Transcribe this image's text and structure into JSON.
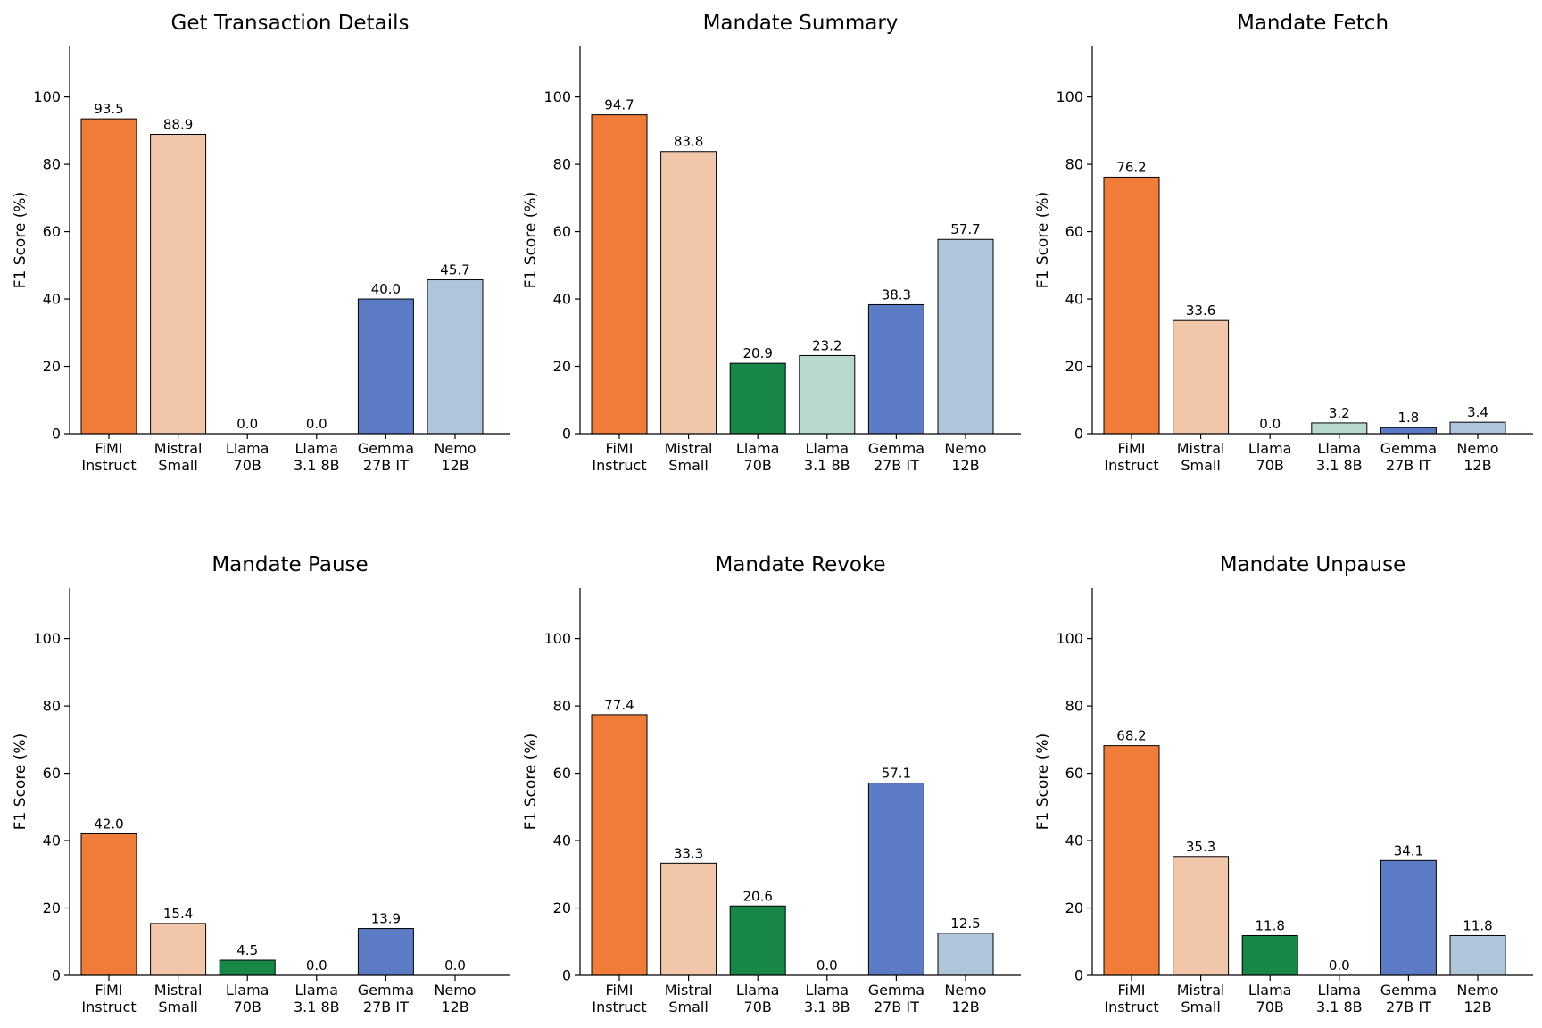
{
  "figure": {
    "categories": [
      [
        "FiMI",
        "Instruct"
      ],
      [
        "Mistral",
        "Small"
      ],
      [
        "Llama",
        "70B"
      ],
      [
        "Llama",
        "3.1 8B"
      ],
      [
        "Gemma",
        "27B IT"
      ],
      [
        "Nemo",
        "12B"
      ]
    ],
    "colors": [
      "#f07c39",
      "#f2c6a9",
      "#178646",
      "#b9d9d0",
      "#5b7bc4",
      "#afc6da"
    ]
  },
  "chart_data": [
    {
      "type": "bar",
      "title": "Get Transaction Details",
      "ylabel": "F1 Score (%)",
      "xlabel": "",
      "ylim": [
        0,
        115
      ],
      "yticks": [
        0,
        20,
        40,
        60,
        80,
        100
      ],
      "categories": [
        "FiMI Instruct",
        "Mistral Small",
        "Llama 70B",
        "Llama 3.1 8B",
        "Gemma 27B IT",
        "Nemo 12B"
      ],
      "values": [
        93.5,
        88.9,
        0.0,
        0.0,
        40.0,
        45.7
      ],
      "labels": [
        "93.5",
        "88.9",
        "0.0",
        "0.0",
        "40.0",
        "45.7"
      ]
    },
    {
      "type": "bar",
      "title": "Mandate Summary",
      "ylabel": "F1 Score (%)",
      "xlabel": "",
      "ylim": [
        0,
        115
      ],
      "yticks": [
        0,
        20,
        40,
        60,
        80,
        100
      ],
      "categories": [
        "FiMI Instruct",
        "Mistral Small",
        "Llama 70B",
        "Llama 3.1 8B",
        "Gemma 27B IT",
        "Nemo 12B"
      ],
      "values": [
        94.7,
        83.8,
        20.9,
        23.2,
        38.3,
        57.7
      ],
      "labels": [
        "94.7",
        "83.8",
        "20.9",
        "23.2",
        "38.3",
        "57.7"
      ]
    },
    {
      "type": "bar",
      "title": "Mandate Fetch",
      "ylabel": "F1 Score (%)",
      "xlabel": "",
      "ylim": [
        0,
        115
      ],
      "yticks": [
        0,
        20,
        40,
        60,
        80,
        100
      ],
      "categories": [
        "FiMI Instruct",
        "Mistral Small",
        "Llama 70B",
        "Llama 3.1 8B",
        "Gemma 27B IT",
        "Nemo 12B"
      ],
      "values": [
        76.2,
        33.6,
        0.0,
        3.2,
        1.8,
        3.4
      ],
      "labels": [
        "76.2",
        "33.6",
        "0.0",
        "3.2",
        "1.8",
        "3.4"
      ]
    },
    {
      "type": "bar",
      "title": "Mandate Pause",
      "ylabel": "F1 Score (%)",
      "xlabel": "",
      "ylim": [
        0,
        115
      ],
      "yticks": [
        0,
        20,
        40,
        60,
        80,
        100
      ],
      "categories": [
        "FiMI Instruct",
        "Mistral Small",
        "Llama 70B",
        "Llama 3.1 8B",
        "Gemma 27B IT",
        "Nemo 12B"
      ],
      "values": [
        42.0,
        15.4,
        4.5,
        0.0,
        13.9,
        0.0
      ],
      "labels": [
        "42.0",
        "15.4",
        "4.5",
        "0.0",
        "13.9",
        "0.0"
      ]
    },
    {
      "type": "bar",
      "title": "Mandate Revoke",
      "ylabel": "F1 Score (%)",
      "xlabel": "",
      "ylim": [
        0,
        115
      ],
      "yticks": [
        0,
        20,
        40,
        60,
        80,
        100
      ],
      "categories": [
        "FiMI Instruct",
        "Mistral Small",
        "Llama 70B",
        "Llama 3.1 8B",
        "Gemma 27B IT",
        "Nemo 12B"
      ],
      "values": [
        77.4,
        33.3,
        20.6,
        0.0,
        57.1,
        12.5
      ],
      "labels": [
        "77.4",
        "33.3",
        "20.6",
        "0.0",
        "57.1",
        "12.5"
      ]
    },
    {
      "type": "bar",
      "title": "Mandate Unpause",
      "ylabel": "F1 Score (%)",
      "xlabel": "",
      "ylim": [
        0,
        115
      ],
      "yticks": [
        0,
        20,
        40,
        60,
        80,
        100
      ],
      "categories": [
        "FiMI Instruct",
        "Mistral Small",
        "Llama 70B",
        "Llama 3.1 8B",
        "Gemma 27B IT",
        "Nemo 12B"
      ],
      "values": [
        68.2,
        35.3,
        11.8,
        0.0,
        34.1,
        11.8
      ],
      "labels": [
        "68.2",
        "35.3",
        "11.8",
        "0.0",
        "34.1",
        "11.8"
      ]
    }
  ]
}
